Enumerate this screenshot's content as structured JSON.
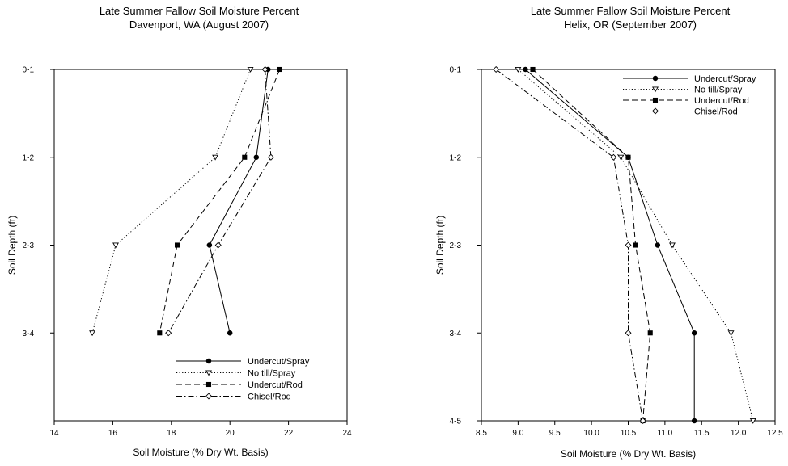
{
  "chart_data": [
    {
      "type": "line",
      "orientation": "depth-profile",
      "title": "Late Summer Fallow Soil Moisture Percent",
      "subtitle": "Davenport, WA (August 2007)",
      "xlabel": "Soil Moisture (% Dry Wt. Basis)",
      "ylabel": "Soil Depth (ft)",
      "xlim": [
        14,
        24
      ],
      "x_ticks": [
        "14",
        "16",
        "18",
        "20",
        "22",
        "24"
      ],
      "categories": [
        "0-1",
        "1-2",
        "2-3",
        "3-4"
      ],
      "grid": false,
      "legend_position": "bottom-right",
      "series": [
        {
          "name": "Undercut/Spray",
          "style": "solid",
          "marker": "filled-circle",
          "values": [
            21.3,
            20.9,
            19.3,
            20.0
          ]
        },
        {
          "name": "No till/Spray",
          "style": "dotted",
          "marker": "open-triangle-down",
          "values": [
            20.7,
            19.5,
            16.1,
            15.3
          ]
        },
        {
          "name": "Undercut/Rod",
          "style": "dashed",
          "marker": "filled-square",
          "values": [
            21.7,
            20.5,
            18.2,
            17.6
          ]
        },
        {
          "name": "Chisel/Rod",
          "style": "dash-dot",
          "marker": "open-diamond",
          "values": [
            21.2,
            21.4,
            19.6,
            17.9
          ]
        }
      ]
    },
    {
      "type": "line",
      "orientation": "depth-profile",
      "title": "Late Summer Fallow Soil Moisture Percent",
      "subtitle": "Helix, OR (September 2007)",
      "xlabel": "Soil Moisture (% Dry Wt. Basis)",
      "ylabel": "Soil Depth (ft)",
      "xlim": [
        8.5,
        12.5
      ],
      "x_ticks": [
        "8.5",
        "9.0",
        "9.5",
        "10.0",
        "10.5",
        "11.0",
        "11.5",
        "12.0",
        "12.5"
      ],
      "categories": [
        "0-1",
        "1-2",
        "2-3",
        "3-4",
        "4-5"
      ],
      "grid": false,
      "legend_position": "top-right",
      "series": [
        {
          "name": "Undercut/Spray",
          "style": "solid",
          "marker": "filled-circle",
          "values": [
            9.1,
            10.5,
            10.9,
            11.4,
            11.4
          ]
        },
        {
          "name": "No till/Spray",
          "style": "dotted",
          "marker": "open-triangle-down",
          "values": [
            9.0,
            10.4,
            11.1,
            11.9,
            12.2
          ]
        },
        {
          "name": "Undercut/Rod",
          "style": "dashed",
          "marker": "filled-square",
          "values": [
            9.2,
            10.5,
            10.6,
            10.8,
            10.7
          ]
        },
        {
          "name": "Chisel/Rod",
          "style": "dash-dot",
          "marker": "open-diamond",
          "values": [
            8.7,
            10.3,
            10.5,
            10.5,
            10.7
          ]
        }
      ]
    }
  ]
}
